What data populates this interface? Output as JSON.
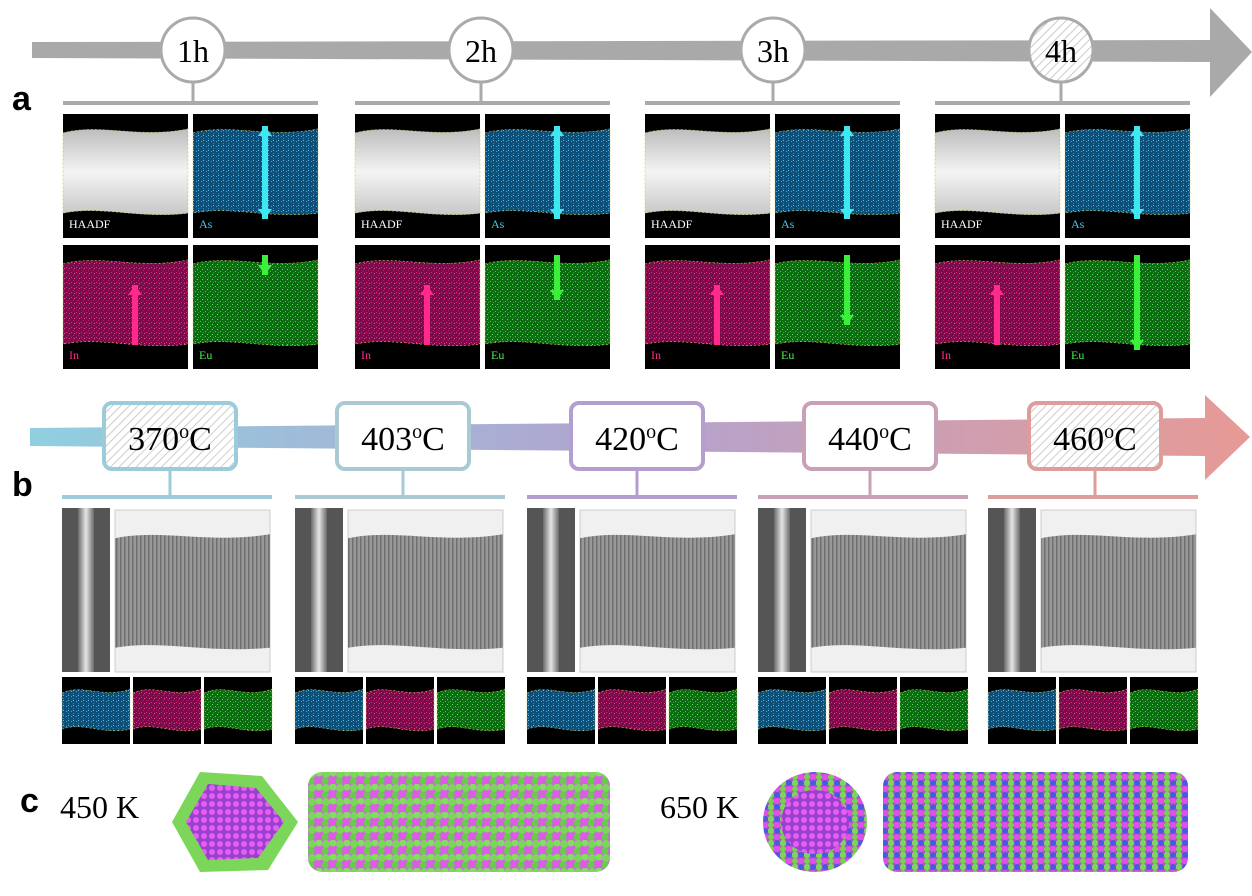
{
  "panel_labels": {
    "a": "a",
    "b": "b",
    "c": "c"
  },
  "time_steps": [
    "1h",
    "2h",
    "3h",
    "4h"
  ],
  "eds_labels": {
    "haadf": "HAADF",
    "as": "As",
    "in": "In",
    "eu": "Eu"
  },
  "temperatures": [
    {
      "number": "370",
      "superscript": "o",
      "unit": "C"
    },
    {
      "number": "403",
      "superscript": "o",
      "unit": "C"
    },
    {
      "number": "420",
      "superscript": "o",
      "unit": "C"
    },
    {
      "number": "440",
      "superscript": "o",
      "unit": "C"
    },
    {
      "number": "460",
      "superscript": "o",
      "unit": "C"
    }
  ],
  "simulations": [
    {
      "label": "450 K"
    },
    {
      "label": "650 K"
    }
  ]
}
